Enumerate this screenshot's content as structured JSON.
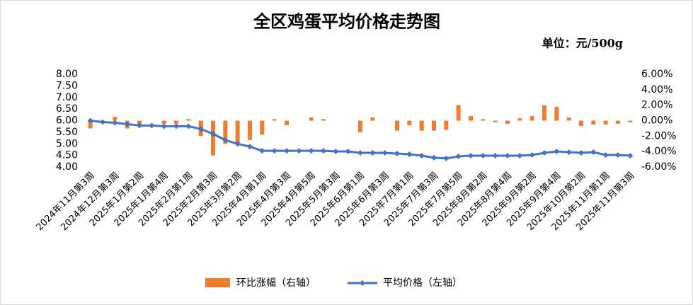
{
  "chart_data": {
    "type": "bar-line",
    "title": "全区鸡蛋平均价格走势图",
    "unit": "单位：元/500g",
    "categories": [
      "2024年11月第3周",
      null,
      "2024年12月第3周",
      null,
      "2025年1月第2周",
      null,
      "2025年1月第4周",
      null,
      "2025年2月第1周",
      null,
      "2025年2月第3周",
      null,
      "2025年3月第2周",
      null,
      "2025年4月第1周",
      null,
      "2025年4月第3周",
      null,
      "2025年4月第5周",
      null,
      "2025年5月第3周",
      null,
      "2025年6月第1周",
      null,
      "2025年6月第3周",
      null,
      "2025年7月第1周",
      null,
      "2025年7月第3周",
      null,
      "2025年7月第5周",
      null,
      "2025年8月第2周",
      null,
      "2025年8月第4周",
      null,
      "2025年9月第2周",
      null,
      "2025年9月第4周",
      null,
      "2025年10月第2周",
      null,
      "2025年11月第1周",
      null,
      "2025年11月第3周"
    ],
    "series": [
      {
        "name": "环比涨幅（右轴）",
        "type": "bar",
        "axis": "y2",
        "color": "#ed7d31",
        "values": [
          -1.0,
          0,
          0.5,
          -1.0,
          -0.5,
          0,
          -0.4,
          -0.4,
          0.2,
          -2.0,
          -4.5,
          -3.0,
          -3.0,
          -2.5,
          -1.8,
          0.2,
          -0.6,
          0,
          0.4,
          0.2,
          0,
          0,
          -1.5,
          0.4,
          0,
          -1.3,
          -0.6,
          -1.3,
          -1.3,
          -1.2,
          2.0,
          0.6,
          0.2,
          -0.2,
          -0.4,
          0.3,
          0.6,
          2.0,
          1.8,
          0.4,
          -0.7,
          -0.5,
          -0.5,
          -0.4,
          -0.2
        ]
      },
      {
        "name": "平均价格（左轴）",
        "type": "line",
        "color": "#4472c4",
        "values": [
          6.0,
          5.94,
          5.91,
          5.85,
          5.79,
          5.79,
          5.76,
          5.76,
          5.76,
          5.64,
          5.43,
          5.16,
          5.0,
          4.88,
          4.7,
          4.7,
          4.7,
          4.7,
          4.7,
          4.7,
          4.67,
          4.67,
          4.61,
          4.61,
          4.61,
          4.58,
          4.55,
          4.49,
          4.4,
          4.37,
          4.46,
          4.49,
          4.49,
          4.49,
          4.49,
          4.49,
          4.52,
          4.61,
          4.67,
          4.64,
          4.61,
          4.64,
          4.52,
          4.52,
          4.49
        ]
      }
    ],
    "ylim": [
      4,
      8
    ],
    "yticks": [
      {
        "value": 4,
        "label": "4.00"
      },
      {
        "value": 4.5,
        "label": "4.50"
      },
      {
        "value": 5,
        "label": "5.00"
      },
      {
        "value": 5.5,
        "label": "5.50"
      },
      {
        "value": 6,
        "label": "6.00"
      },
      {
        "value": 6.5,
        "label": "6.50"
      },
      {
        "value": 7,
        "label": "7.00"
      },
      {
        "value": 7.5,
        "label": "7.50"
      },
      {
        "value": 8,
        "label": "8.00"
      }
    ],
    "y2lim": [
      -6,
      6
    ],
    "y2ticks": [
      {
        "value": -6,
        "label": "-6.00%"
      },
      {
        "value": -4,
        "label": "-4.00%"
      },
      {
        "value": -2,
        "label": "-2.00%"
      },
      {
        "value": 0,
        "label": "0.00%"
      },
      {
        "value": 2,
        "label": "2.00%"
      },
      {
        "value": 4,
        "label": "4.00%"
      },
      {
        "value": 6,
        "label": "6.00%"
      }
    ],
    "legend": "bottom"
  }
}
